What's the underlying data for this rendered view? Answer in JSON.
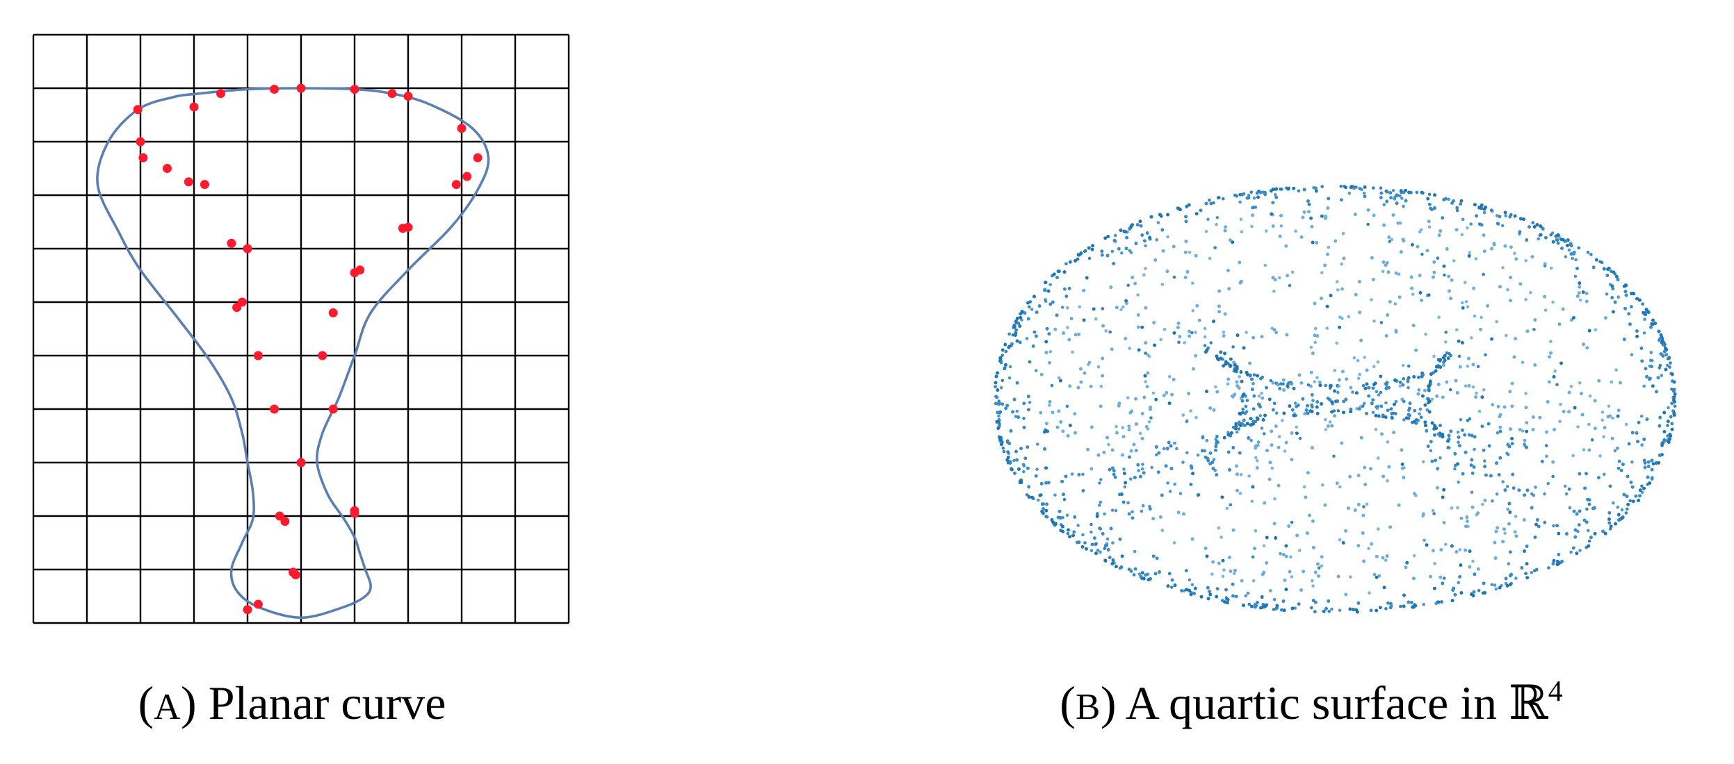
{
  "captions": {
    "a": {
      "label_open": "(",
      "label_letter": "A",
      "label_close": ")",
      "text": "Planar curve"
    },
    "b": {
      "label_open": "(",
      "label_letter": "B",
      "label_close": ")",
      "text": "A quartic surface in ",
      "space_symbol": "ℝ",
      "space_exponent": "4"
    }
  },
  "colors": {
    "grid": "#000000",
    "curve": "#5b7fb3",
    "sample_points": "#ff1a2e",
    "surface_points": [
      "#1f77b4",
      "#3a8cc6",
      "#6aaed8"
    ]
  },
  "chart_data": [
    {
      "type": "line",
      "panel": "A",
      "grid": true,
      "grid_divisions": [
        10,
        11
      ],
      "xlim": [
        0,
        10
      ],
      "ylim": [
        0,
        11
      ],
      "series": [
        {
          "closed": true,
          "x": [
            5.0,
            6.0,
            6.7,
            7.4,
            8.2,
            8.5,
            8.3,
            7.8,
            7.0,
            6.3,
            6.0,
            5.7,
            5.4,
            5.3,
            5.5,
            5.8,
            6.0,
            6.1,
            6.2,
            6.3,
            6.2,
            5.8,
            5.0,
            4.2,
            3.8,
            3.7,
            3.9,
            4.1,
            4.1,
            4.0,
            3.9,
            3.7,
            3.3,
            2.7,
            2.0,
            1.6,
            1.2,
            1.4,
            1.95,
            2.6,
            3.1,
            4.0,
            5.0
          ],
          "y": [
            10.0,
            9.98,
            9.9,
            9.7,
            9.25,
            8.7,
            8.1,
            7.4,
            6.6,
            5.8,
            5.0,
            4.2,
            3.55,
            3.0,
            2.4,
            1.95,
            1.6,
            1.3,
            1.0,
            0.7,
            0.5,
            0.3,
            0.1,
            0.3,
            0.6,
            1.0,
            1.5,
            1.95,
            2.45,
            3.0,
            3.55,
            4.2,
            4.9,
            5.7,
            6.6,
            7.3,
            8.2,
            9.0,
            9.6,
            9.83,
            9.9,
            9.98,
            10.0
          ]
        }
      ],
      "sample_points": {
        "x": [
          5.0,
          6.0,
          6.7,
          7.0,
          8.0,
          8.3,
          8.1,
          7.9,
          7.0,
          6.9,
          6.1,
          6.0,
          5.6,
          5.4,
          5.6,
          5.0,
          6.0,
          6.0,
          4.0,
          4.2,
          4.9,
          4.85,
          4.7,
          4.6,
          4.5,
          4.2,
          3.8,
          3.9,
          4.0,
          3.7,
          3.2,
          2.9,
          2.5,
          2.05,
          2.0,
          1.95,
          3.0,
          3.5,
          4.5
        ],
        "y": [
          10.0,
          9.98,
          9.9,
          9.85,
          9.25,
          8.7,
          8.35,
          8.2,
          7.4,
          7.38,
          6.6,
          6.55,
          5.8,
          5.0,
          4.0,
          3.0,
          2.1,
          2.05,
          0.25,
          0.35,
          0.9,
          0.95,
          1.9,
          2.0,
          4.0,
          5.0,
          5.9,
          6.0,
          7.0,
          7.1,
          8.2,
          8.25,
          8.5,
          8.7,
          9.0,
          9.6,
          9.65,
          9.9,
          9.98
        ]
      }
    },
    {
      "type": "scatter",
      "panel": "B",
      "shape": "torus"
    }
  ]
}
